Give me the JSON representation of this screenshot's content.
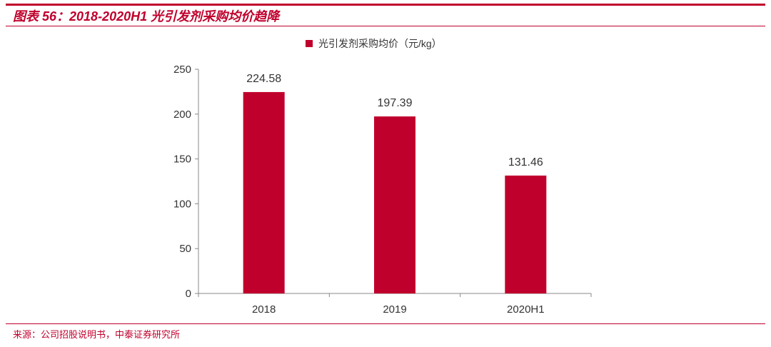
{
  "header": {
    "title": "图表 56：2018-2020H1 光引发剂采购均价趋降"
  },
  "footer": {
    "source": "来源：公司招股说明书，中泰证券研究所"
  },
  "colors": {
    "accent": "#c0002c",
    "bar": "#c0002c"
  },
  "chart_data": {
    "type": "bar",
    "categories": [
      "2018",
      "2019",
      "2020H1"
    ],
    "series": [
      {
        "name": "光引发剂采购均价（元/kg）",
        "values": [
          224.58,
          197.39,
          131.46
        ]
      }
    ],
    "data_labels": [
      "224.58",
      "197.39",
      "131.46"
    ],
    "ylim": [
      0,
      250
    ],
    "yticks": [
      0,
      50,
      100,
      150,
      200,
      250
    ],
    "legend_position": "top-center",
    "grid": false
  }
}
